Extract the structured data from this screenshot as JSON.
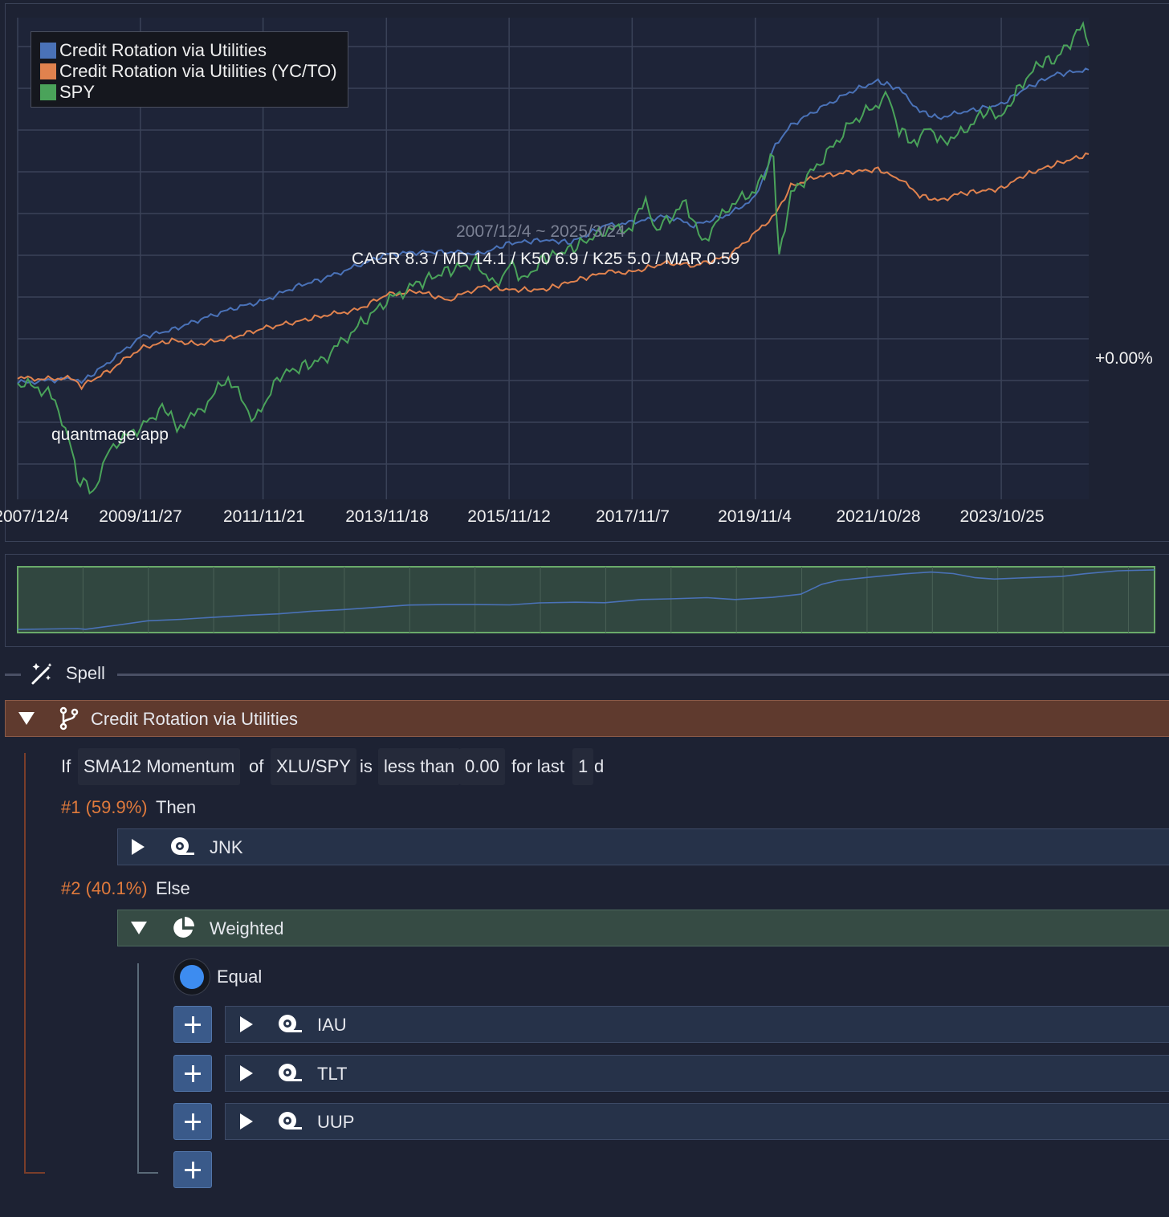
{
  "chart_data": {
    "type": "line",
    "legend": [
      {
        "name": "Credit Rotation via Utilities",
        "color": "#4a72b8"
      },
      {
        "name": "Credit Rotation via Utilities (YC/TO)",
        "color": "#e0824e"
      },
      {
        "name": "SPY",
        "color": "#4aa35a"
      }
    ],
    "series": [
      {
        "name": "Credit Rotation via Utilities",
        "color": "#4a72b8",
        "x": [
          "2007/12/4",
          "2008/6/1",
          "2008/11/1",
          "2008/12/15",
          "2009/6/1",
          "2009/11/27",
          "2010/6/1",
          "2010/11/1",
          "2011/6/1",
          "2011/11/21",
          "2012/6/1",
          "2012/11/15",
          "2013/6/1",
          "2013/11/18",
          "2014/6/1",
          "2014/11/15",
          "2015/6/1",
          "2015/11/12",
          "2016/6/1",
          "2016/11/10",
          "2017/6/1",
          "2017/11/7",
          "2018/6/1",
          "2018/11/5",
          "2019/6/1",
          "2019/11/4",
          "2020/3/1",
          "2020/6/1",
          "2020/11/1",
          "2021/6/1",
          "2021/10/28",
          "2022/3/1",
          "2022/7/1",
          "2022/10/15",
          "2023/3/1",
          "2023/10/25",
          "2024/3/1",
          "2024/9/1",
          "2025/3/24"
        ],
        "values": [
          0.0,
          0.3,
          0.6,
          0.1,
          2.7,
          5.7,
          6.6,
          7.8,
          9.3,
          10.2,
          12.0,
          13.0,
          14.6,
          16.0,
          16.3,
          16.3,
          16.1,
          17.4,
          17.8,
          17.5,
          19.6,
          20.0,
          20.8,
          19.6,
          21.0,
          23.1,
          29.6,
          32.1,
          34.0,
          36.4,
          37.6,
          36.6,
          33.9,
          33.0,
          33.7,
          34.7,
          36.5,
          38.4,
          39.0
        ]
      },
      {
        "name": "Credit Rotation via Utilities (YC/TO)",
        "color": "#e0824e",
        "x": [
          "2007/12/4",
          "2008/6/1",
          "2008/11/1",
          "2008/12/15",
          "2009/6/1",
          "2009/11/27",
          "2010/6/1",
          "2010/11/1",
          "2011/6/1",
          "2011/11/21",
          "2012/6/1",
          "2012/11/15",
          "2013/6/1",
          "2013/11/18",
          "2014/6/1",
          "2014/11/15",
          "2015/6/1",
          "2015/11/12",
          "2016/6/1",
          "2016/11/10",
          "2017/6/1",
          "2017/11/7",
          "2018/6/1",
          "2018/11/5",
          "2019/6/1",
          "2019/11/4",
          "2020/3/1",
          "2020/6/1",
          "2020/11/1",
          "2021/6/1",
          "2021/10/28",
          "2022/3/1",
          "2022/7/1",
          "2022/10/15",
          "2023/3/1",
          "2023/10/25",
          "2024/3/1",
          "2024/9/1",
          "2025/3/24"
        ],
        "values": [
          0.6,
          0.5,
          0.6,
          -0.4,
          1.6,
          4.3,
          5.3,
          4.8,
          5.7,
          6.8,
          7.6,
          8.4,
          9.1,
          11.0,
          11.4,
          10.3,
          12.0,
          11.6,
          11.6,
          12.6,
          13.8,
          13.8,
          15.0,
          14.6,
          15.8,
          18.7,
          21.0,
          24.5,
          25.7,
          26.3,
          26.6,
          25.4,
          23.4,
          22.7,
          23.6,
          24.2,
          25.8,
          27.2,
          28.5
        ]
      },
      {
        "name": "SPY",
        "color": "#4aa35a",
        "x": [
          "2007/12/4",
          "2008/6/1",
          "2008/10/1",
          "2008/11/20",
          "2009/3/9",
          "2009/6/1",
          "2009/11/27",
          "2010/4/23",
          "2010/7/1",
          "2010/11/1",
          "2011/4/29",
          "2011/10/3",
          "2012/3/1",
          "2012/11/15",
          "2013/6/1",
          "2013/11/18",
          "2014/6/1",
          "2014/11/15",
          "2015/5/1",
          "2015/8/24",
          "2015/11/12",
          "2016/2/11",
          "2016/6/1",
          "2016/11/10",
          "2017/6/1",
          "2017/11/7",
          "2018/1/26",
          "2018/4/1",
          "2018/9/20",
          "2018/12/24",
          "2019/6/1",
          "2019/11/4",
          "2020/2/19",
          "2020/3/23",
          "2020/6/1",
          "2020/11/1",
          "2021/6/1",
          "2021/12/30",
          "2022/3/1",
          "2022/6/16",
          "2022/8/15",
          "2022/10/12",
          "2023/3/1",
          "2023/7/31",
          "2023/10/25",
          "2024/3/1",
          "2024/7/15",
          "2024/9/1",
          "2025/2/19",
          "2025/3/24"
        ],
        "values": [
          0.0,
          -1.0,
          -6.5,
          -12.0,
          -13.5,
          -8.0,
          -5.5,
          -3.0,
          -5.5,
          -3.8,
          0.7,
          -4.7,
          1.0,
          3.0,
          7.0,
          10.2,
          12.5,
          14.0,
          15.0,
          12.0,
          14.9,
          12.8,
          15.5,
          16.7,
          19.0,
          19.3,
          23.0,
          19.0,
          22.5,
          17.5,
          22.0,
          24.0,
          28.3,
          15.5,
          23.5,
          27.0,
          32.6,
          35.7,
          31.6,
          29.5,
          32.5,
          30.0,
          31.0,
          34.0,
          33.0,
          37.5,
          40.5,
          40.0,
          44.5,
          42.0
        ]
      }
    ],
    "x_ticks": [
      "2007/12/4",
      "2009/11/27",
      "2011/11/21",
      "2013/11/18",
      "2015/11/12",
      "2017/11/7",
      "2019/11/4",
      "2021/10/28",
      "2023/10/25"
    ],
    "xlim": [
      "2007/12/4",
      "2025/3/24"
    ],
    "ylim": [
      -14.5,
      45.5
    ],
    "y_label_value": 0,
    "y_label": "+0.00%",
    "grid": true,
    "legend_position": "top-left",
    "annotations": {
      "period": "2007/12/4 ~ 2025/3/24",
      "stats": "CAGR 8.3 / MD 14.1 / K50 6.9 / K25 5.0 / MAR 0.59",
      "watermark": "quantmage.app"
    }
  },
  "navigator": {
    "series_name": "Credit Rotation via Utilities",
    "fill_color": "#314740",
    "line_color": "#4a72b8"
  },
  "spell": {
    "header_label": "Spell",
    "root": {
      "title": "Credit Rotation via Utilities",
      "condition": {
        "if": "If",
        "indicator": "SMA12 Momentum",
        "of": "of",
        "asset": "XLU/SPY",
        "is": "is",
        "comparator": "less than",
        "value": "0.00",
        "for_last": "for last",
        "days": "1",
        "unit": "d"
      },
      "then_branch": {
        "label": "#1 (59.9%)",
        "word": "Then",
        "ticker": "JNK"
      },
      "else_branch": {
        "label": "#2 (40.1%)",
        "word": "Else",
        "weighted_title": "Weighted",
        "weighting_mode": "Equal",
        "tickers": [
          "IAU",
          "TLT",
          "UUP"
        ]
      }
    }
  },
  "colors": {
    "background": "#1d2233",
    "root_block": "#5f3a2e",
    "ticker_block": "#263249",
    "weighted_block": "#364b44",
    "branch_label": "#e07a3c",
    "plus_button": "#3a5a8a",
    "radio_selected": "#3d8cf0"
  },
  "icons": {
    "spell": "magic-wand-icon",
    "root": "branch-icon",
    "ticker": "ticker-icon",
    "weighted": "pie-chart-icon",
    "expand": "caret-right-icon",
    "collapse": "caret-down-icon",
    "add": "plus-icon"
  }
}
